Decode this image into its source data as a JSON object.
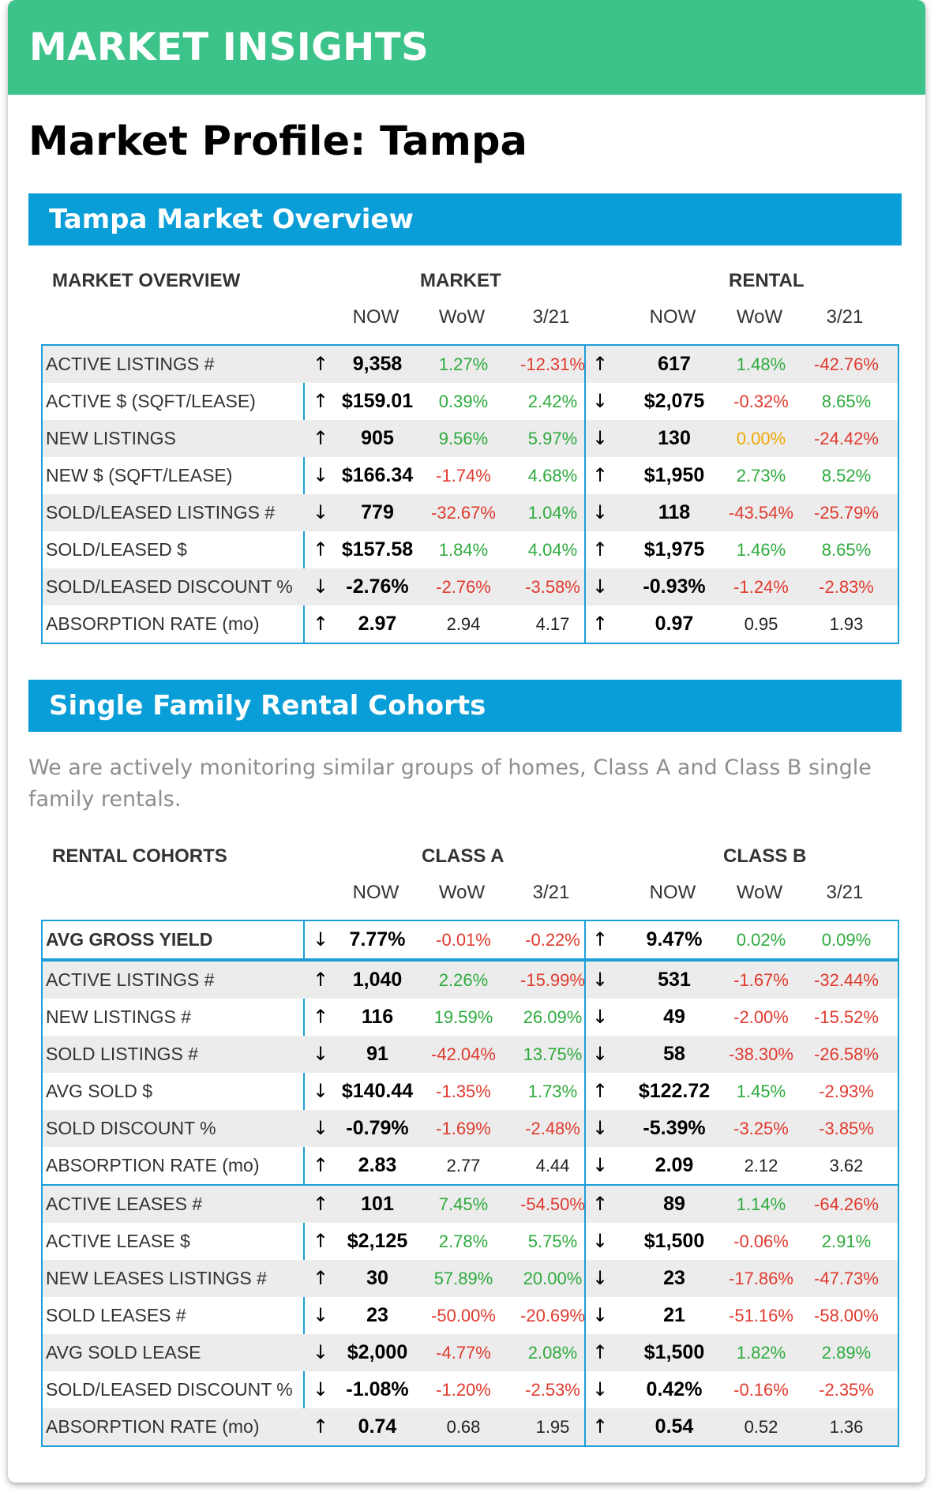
{
  "banner_title": "MARKET INSIGHTS",
  "page_title": "Market Profile: Tampa",
  "overview": {
    "section_title": "Tampa Market Overview",
    "header_label": "MARKET OVERVIEW",
    "group_a": "MARKET",
    "group_b": "RENTAL",
    "col_now": "NOW",
    "col_wow": "WoW",
    "col_321": "3/21",
    "rows": [
      {
        "label": "ACTIVE LISTINGS #",
        "a_arrow": "↑",
        "a_now": "9,358",
        "a_wow": "1.27%",
        "a_wow_c": "pos",
        "a_321": "-12.31%",
        "a_321_c": "neg",
        "b_arrow": "↑",
        "b_now": "617",
        "b_wow": "1.48%",
        "b_wow_c": "pos",
        "b_321": "-42.76%",
        "b_321_c": "neg"
      },
      {
        "label": "ACTIVE $ (SQFT/LEASE)",
        "a_arrow": "↑",
        "a_now": "$159.01",
        "a_wow": "0.39%",
        "a_wow_c": "pos",
        "a_321": "2.42%",
        "a_321_c": "pos",
        "b_arrow": "↓",
        "b_now": "$2,075",
        "b_wow": "-0.32%",
        "b_wow_c": "neg",
        "b_321": "8.65%",
        "b_321_c": "pos"
      },
      {
        "label": "NEW LISTINGS",
        "a_arrow": "↑",
        "a_now": "905",
        "a_wow": "9.56%",
        "a_wow_c": "pos",
        "a_321": "5.97%",
        "a_321_c": "pos",
        "b_arrow": "↓",
        "b_now": "130",
        "b_wow": "0.00%",
        "b_wow_c": "zero",
        "b_321": "-24.42%",
        "b_321_c": "neg"
      },
      {
        "label": "NEW $ (SQFT/LEASE)",
        "a_arrow": "↓",
        "a_now": "$166.34",
        "a_wow": "-1.74%",
        "a_wow_c": "neg",
        "a_321": "4.68%",
        "a_321_c": "pos",
        "b_arrow": "↑",
        "b_now": "$1,950",
        "b_wow": "2.73%",
        "b_wow_c": "pos",
        "b_321": "8.52%",
        "b_321_c": "pos"
      },
      {
        "label": "SOLD/LEASED LISTINGS #",
        "a_arrow": "↓",
        "a_now": "779",
        "a_wow": "-32.67%",
        "a_wow_c": "neg",
        "a_321": "1.04%",
        "a_321_c": "pos",
        "b_arrow": "↓",
        "b_now": "118",
        "b_wow": "-43.54%",
        "b_wow_c": "neg",
        "b_321": "-25.79%",
        "b_321_c": "neg"
      },
      {
        "label": "SOLD/LEASED $",
        "a_arrow": "↑",
        "a_now": "$157.58",
        "a_wow": "1.84%",
        "a_wow_c": "pos",
        "a_321": "4.04%",
        "a_321_c": "pos",
        "b_arrow": "↑",
        "b_now": "$1,975",
        "b_wow": "1.46%",
        "b_wow_c": "pos",
        "b_321": "8.65%",
        "b_321_c": "pos"
      },
      {
        "label": "SOLD/LEASED DISCOUNT %",
        "a_arrow": "↓",
        "a_now": "-2.76%",
        "a_wow": "-2.76%",
        "a_wow_c": "neg",
        "a_321": "-3.58%",
        "a_321_c": "neg",
        "b_arrow": "↓",
        "b_now": "-0.93%",
        "b_wow": "-1.24%",
        "b_wow_c": "neg",
        "b_321": "-2.83%",
        "b_321_c": "neg"
      },
      {
        "label": "ABSORPTION RATE (mo)",
        "a_arrow": "↑",
        "a_now": "2.97",
        "a_wow": "2.94",
        "a_wow_c": "plain",
        "a_321": "4.17",
        "a_321_c": "plain",
        "b_arrow": "↑",
        "b_now": "0.97",
        "b_wow": "0.95",
        "b_wow_c": "plain",
        "b_321": "1.93",
        "b_321_c": "plain"
      }
    ]
  },
  "cohorts": {
    "section_title": "Single Family Rental Cohorts",
    "description": "We are actively monitoring similar groups of homes, Class A and Class B single family rentals.",
    "header_label": "RENTAL COHORTS",
    "group_a": "CLASS A",
    "group_b": "CLASS B",
    "col_now": "NOW",
    "col_wow": "WoW",
    "col_321": "3/21",
    "yield_rows": [
      {
        "label": "AVG GROSS YIELD",
        "strong": true,
        "a_arrow": "↓",
        "a_now": "7.77%",
        "a_wow": "-0.01%",
        "a_wow_c": "neg",
        "a_321": "-0.22%",
        "a_321_c": "neg",
        "b_arrow": "↑",
        "b_now": "9.47%",
        "b_wow": "0.02%",
        "b_wow_c": "pos",
        "b_321": "0.09%",
        "b_321_c": "pos"
      }
    ],
    "sales_rows": [
      {
        "label": "ACTIVE LISTINGS #",
        "a_arrow": "↑",
        "a_now": "1,040",
        "a_wow": "2.26%",
        "a_wow_c": "pos",
        "a_321": "-15.99%",
        "a_321_c": "neg",
        "b_arrow": "↓",
        "b_now": "531",
        "b_wow": "-1.67%",
        "b_wow_c": "neg",
        "b_321": "-32.44%",
        "b_321_c": "neg"
      },
      {
        "label": "NEW LISTINGS #",
        "a_arrow": "↑",
        "a_now": "116",
        "a_wow": "19.59%",
        "a_wow_c": "pos",
        "a_321": "26.09%",
        "a_321_c": "pos",
        "b_arrow": "↓",
        "b_now": "49",
        "b_wow": "-2.00%",
        "b_wow_c": "neg",
        "b_321": "-15.52%",
        "b_321_c": "neg"
      },
      {
        "label": "SOLD LISTINGS #",
        "a_arrow": "↓",
        "a_now": "91",
        "a_wow": "-42.04%",
        "a_wow_c": "neg",
        "a_321": "13.75%",
        "a_321_c": "pos",
        "b_arrow": "↓",
        "b_now": "58",
        "b_wow": "-38.30%",
        "b_wow_c": "neg",
        "b_321": "-26.58%",
        "b_321_c": "neg"
      },
      {
        "label": "AVG SOLD $",
        "a_arrow": "↓",
        "a_now": "$140.44",
        "a_wow": "-1.35%",
        "a_wow_c": "neg",
        "a_321": "1.73%",
        "a_321_c": "pos",
        "b_arrow": "↑",
        "b_now": "$122.72",
        "b_wow": "1.45%",
        "b_wow_c": "pos",
        "b_321": "-2.93%",
        "b_321_c": "neg"
      },
      {
        "label": "SOLD DISCOUNT %",
        "a_arrow": "↓",
        "a_now": "-0.79%",
        "a_wow": "-1.69%",
        "a_wow_c": "neg",
        "a_321": "-2.48%",
        "a_321_c": "neg",
        "b_arrow": "↓",
        "b_now": "-5.39%",
        "b_wow": "-3.25%",
        "b_wow_c": "neg",
        "b_321": "-3.85%",
        "b_321_c": "neg"
      },
      {
        "label": "ABSORPTION RATE (mo)",
        "a_arrow": "↑",
        "a_now": "2.83",
        "a_wow": "2.77",
        "a_wow_c": "plain",
        "a_321": "4.44",
        "a_321_c": "plain",
        "b_arrow": "↓",
        "b_now": "2.09",
        "b_wow": "2.12",
        "b_wow_c": "plain",
        "b_321": "3.62",
        "b_321_c": "plain"
      }
    ],
    "lease_rows": [
      {
        "label": "ACTIVE LEASES #",
        "a_arrow": "↑",
        "a_now": "101",
        "a_wow": "7.45%",
        "a_wow_c": "pos",
        "a_321": "-54.50%",
        "a_321_c": "neg",
        "b_arrow": "↑",
        "b_now": "89",
        "b_wow": "1.14%",
        "b_wow_c": "pos",
        "b_321": "-64.26%",
        "b_321_c": "neg"
      },
      {
        "label": "ACTIVE LEASE $",
        "a_arrow": "↑",
        "a_now": "$2,125",
        "a_wow": "2.78%",
        "a_wow_c": "pos",
        "a_321": "5.75%",
        "a_321_c": "pos",
        "b_arrow": "↓",
        "b_now": "$1,500",
        "b_wow": "-0.06%",
        "b_wow_c": "neg",
        "b_321": "2.91%",
        "b_321_c": "pos"
      },
      {
        "label": "NEW LEASES LISTINGS #",
        "a_arrow": "↑",
        "a_now": "30",
        "a_wow": "57.89%",
        "a_wow_c": "pos",
        "a_321": "20.00%",
        "a_321_c": "pos",
        "b_arrow": "↓",
        "b_now": "23",
        "b_wow": "-17.86%",
        "b_wow_c": "neg",
        "b_321": "-47.73%",
        "b_321_c": "neg"
      },
      {
        "label": "SOLD LEASES #",
        "a_arrow": "↓",
        "a_now": "23",
        "a_wow": "-50.00%",
        "a_wow_c": "neg",
        "a_321": "-20.69%",
        "a_321_c": "neg",
        "b_arrow": "↓",
        "b_now": "21",
        "b_wow": "-51.16%",
        "b_wow_c": "neg",
        "b_321": "-58.00%",
        "b_321_c": "neg"
      },
      {
        "label": "AVG SOLD LEASE",
        "a_arrow": "↓",
        "a_now": "$2,000",
        "a_wow": "-4.77%",
        "a_wow_c": "neg",
        "a_321": "2.08%",
        "a_321_c": "pos",
        "b_arrow": "↑",
        "b_now": "$1,500",
        "b_wow": "1.82%",
        "b_wow_c": "pos",
        "b_321": "2.89%",
        "b_321_c": "pos"
      },
      {
        "label": "SOLD/LEASED DISCOUNT %",
        "a_arrow": "↓",
        "a_now": "-1.08%",
        "a_wow": "-1.20%",
        "a_wow_c": "neg",
        "a_321": "-2.53%",
        "a_321_c": "neg",
        "b_arrow": "↓",
        "b_now": "0.42%",
        "b_wow": "-0.16%",
        "b_wow_c": "neg",
        "b_321": "-2.35%",
        "b_321_c": "neg"
      },
      {
        "label": "ABSORPTION RATE (mo)",
        "a_arrow": "↑",
        "a_now": "0.74",
        "a_wow": "0.68",
        "a_wow_c": "plain",
        "a_321": "1.95",
        "a_321_c": "plain",
        "b_arrow": "↑",
        "b_now": "0.54",
        "b_wow": "0.52",
        "b_wow_c": "plain",
        "b_321": "1.36",
        "b_321_c": "plain"
      }
    ]
  },
  "colors": {
    "banner": "#3cc38a",
    "section_bar": "#0a9ed8",
    "table_border": "#1a9fd9",
    "positive": "#2eab3e",
    "negative": "#e03a2e",
    "neutral_zero": "#f0a800",
    "row_stripe": "#ececec"
  }
}
